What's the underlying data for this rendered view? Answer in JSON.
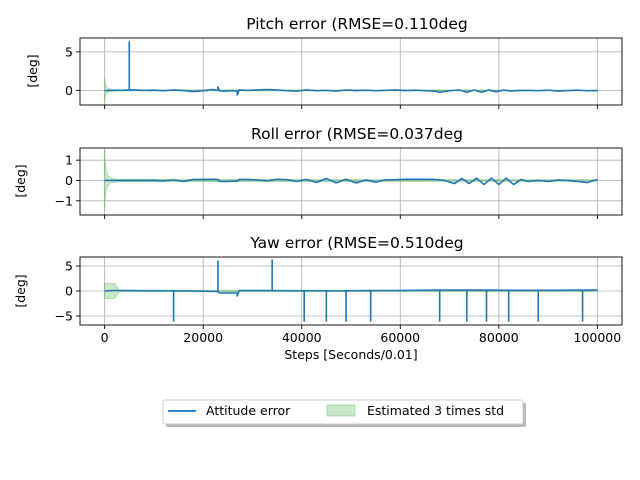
{
  "chart_data": [
    {
      "type": "line",
      "title": "Pitch error (RMSE=0.110deg",
      "xlabel": "",
      "ylabel": "[deg]",
      "xlim": [
        -5000,
        105000
      ],
      "ylim": [
        -1.9,
        6.8
      ],
      "yticks": [
        0,
        5
      ],
      "xticks": [
        0,
        20000,
        40000,
        60000,
        80000,
        100000
      ],
      "grid": true,
      "series": [
        {
          "name": "Attitude error",
          "color": "#1f77b4",
          "x": [
            0,
            2000,
            4000,
            5000,
            5000,
            5000,
            6000,
            8000,
            10000,
            12000,
            14000,
            16000,
            18000,
            20000,
            22000,
            23000,
            23000,
            23300,
            24000,
            26000,
            26900,
            26900,
            27300,
            29000,
            31000,
            33000,
            35000,
            37000,
            39000,
            41000,
            43000,
            45000,
            47000,
            49000,
            51000,
            53000,
            55000,
            57000,
            59000,
            61000,
            63000,
            65000,
            67000,
            68000,
            70000,
            72000,
            73500,
            75000,
            76500,
            78000,
            79500,
            81000,
            82500,
            84000,
            86000,
            88000,
            90000,
            92000,
            94000,
            96000,
            98000,
            100000
          ],
          "y": [
            -0.02,
            0.0,
            0.02,
            0.05,
            6.3,
            0.05,
            0.05,
            0.0,
            0.02,
            -0.05,
            0.05,
            -0.02,
            -0.15,
            -0.05,
            0.1,
            0.0,
            0.45,
            -0.05,
            -0.1,
            -0.05,
            -0.1,
            -0.6,
            0.05,
            0.0,
            0.05,
            0.1,
            0.05,
            -0.05,
            -0.1,
            0.05,
            -0.05,
            0.0,
            -0.1,
            0.05,
            -0.02,
            0.02,
            -0.05,
            0.0,
            0.05,
            -0.02,
            0.02,
            -0.05,
            -0.1,
            -0.25,
            -0.05,
            0.05,
            -0.25,
            0.05,
            -0.25,
            0.05,
            -0.2,
            0.05,
            -0.1,
            -0.02,
            0.0,
            -0.05,
            0.02,
            -0.1,
            -0.02,
            0.02,
            -0.05,
            -0.02
          ]
        },
        {
          "name": "Estimated 3 times std",
          "type": "area",
          "color": "#2ca02c",
          "x": [
            0,
            120,
            350,
            700,
            1500,
            3000,
            100000
          ],
          "upper": [
            1.6,
            1.0,
            0.45,
            0.25,
            0.12,
            0.08,
            0.05
          ],
          "lower": [
            -1.6,
            -1.0,
            -0.45,
            -0.25,
            -0.12,
            -0.08,
            -0.05
          ]
        }
      ]
    },
    {
      "type": "line",
      "title": "Roll error (RMSE=0.037deg",
      "xlabel": "",
      "ylabel": "[deg]",
      "xlim": [
        -5000,
        105000
      ],
      "ylim": [
        -1.7,
        1.6
      ],
      "yticks": [
        -1,
        0,
        1
      ],
      "xticks": [
        0,
        20000,
        40000,
        60000,
        80000,
        100000
      ],
      "grid": true,
      "series": [
        {
          "name": "Attitude error",
          "color": "#1f77b4",
          "x": [
            0,
            2000,
            5000,
            8000,
            10000,
            12000,
            14000,
            16000,
            18000,
            20000,
            22000,
            23000,
            23300,
            25000,
            26900,
            27300,
            29000,
            31000,
            33000,
            35000,
            37000,
            39000,
            41000,
            43000,
            45000,
            47000,
            49000,
            51000,
            53000,
            55000,
            57000,
            59000,
            61000,
            63000,
            65000,
            67000,
            69000,
            71000,
            72500,
            74000,
            75500,
            77000,
            78500,
            80000,
            81500,
            83000,
            84500,
            86000,
            88000,
            90000,
            92000,
            94000,
            96000,
            98000,
            100000
          ],
          "y": [
            0.0,
            0.0,
            0.0,
            0.0,
            0.01,
            -0.02,
            0.03,
            -0.05,
            0.05,
            0.05,
            0.06,
            0.05,
            -0.05,
            -0.05,
            -0.03,
            0.05,
            0.05,
            0.03,
            -0.02,
            0.06,
            0.04,
            -0.05,
            0.05,
            -0.1,
            0.1,
            -0.12,
            0.06,
            -0.12,
            0.02,
            -0.08,
            0.03,
            0.04,
            0.06,
            0.06,
            0.06,
            0.05,
            0.0,
            -0.15,
            0.1,
            -0.15,
            0.12,
            -0.2,
            0.12,
            -0.2,
            0.12,
            -0.2,
            0.05,
            -0.05,
            0.0,
            -0.05,
            0.02,
            0.0,
            -0.05,
            -0.1,
            0.05
          ]
        },
        {
          "name": "Estimated 3 times std",
          "type": "area",
          "color": "#2ca02c",
          "x": [
            0,
            100,
            300,
            600,
            1200,
            2500,
            100000
          ],
          "upper": [
            1.5,
            1.0,
            0.5,
            0.25,
            0.12,
            0.06,
            0.04
          ],
          "lower": [
            -1.5,
            -1.0,
            -0.5,
            -0.25,
            -0.12,
            -0.06,
            -0.04
          ]
        }
      ]
    },
    {
      "type": "line",
      "title": "Yaw error (RMSE=0.510deg",
      "xlabel": "Steps [Seconds/0.01]",
      "ylabel": "[deg]",
      "xlim": [
        -5000,
        105000
      ],
      "ylim": [
        -6.8,
        6.8
      ],
      "yticks": [
        -5,
        0,
        5
      ],
      "xticks": [
        0,
        20000,
        40000,
        60000,
        80000,
        100000
      ],
      "grid": true,
      "series": [
        {
          "name": "Attitude error",
          "color": "#1f77b4",
          "x": [
            0,
            2000,
            5000,
            9000,
            14000,
            14000,
            14000,
            18000,
            23000,
            23000,
            23000,
            23300,
            26900,
            26900,
            27300,
            30000,
            34000,
            34000,
            34000,
            38000,
            40500,
            40500,
            40500,
            45000,
            45000,
            45000,
            49000,
            49000,
            49000,
            54000,
            54000,
            54000,
            58000,
            63000,
            68000,
            68000,
            68000,
            73500,
            73500,
            73500,
            77500,
            77500,
            77500,
            82000,
            82000,
            82000,
            88000,
            88000,
            88000,
            92000,
            97000,
            97000,
            97000,
            100000
          ],
          "y": [
            0.0,
            0.1,
            0.1,
            0.05,
            0.05,
            -6.0,
            0.05,
            0.0,
            -0.1,
            6.0,
            -0.1,
            -0.4,
            -0.4,
            -1.0,
            0.1,
            0.1,
            0.1,
            6.2,
            0.1,
            0.05,
            0.05,
            -6.0,
            0.05,
            0.05,
            -6.0,
            0.05,
            0.05,
            -6.0,
            0.05,
            0.1,
            -6.0,
            0.1,
            0.1,
            0.15,
            0.2,
            -6.0,
            0.2,
            0.2,
            -6.0,
            0.2,
            0.2,
            -6.0,
            0.2,
            0.15,
            -6.0,
            0.15,
            0.15,
            -6.0,
            0.15,
            0.15,
            0.2,
            -6.0,
            0.2,
            0.2
          ]
        },
        {
          "name": "Estimated 3 times std",
          "type": "area",
          "color": "#2ca02c",
          "x": [
            0,
            1000,
            2000,
            2500,
            3000,
            100000
          ],
          "upper": [
            1.5,
            1.5,
            1.5,
            0.9,
            0.15,
            0.1
          ],
          "lower": [
            -1.5,
            -1.5,
            -1.5,
            -0.9,
            -0.15,
            -0.1
          ]
        }
      ]
    }
  ],
  "legend": {
    "placement": "bottom-center",
    "entries": [
      {
        "label": "Attitude error",
        "kind": "line",
        "color": "#1f77b4"
      },
      {
        "label": "Estimated 3 times std",
        "kind": "patch",
        "color": "#2ca02c"
      }
    ]
  }
}
